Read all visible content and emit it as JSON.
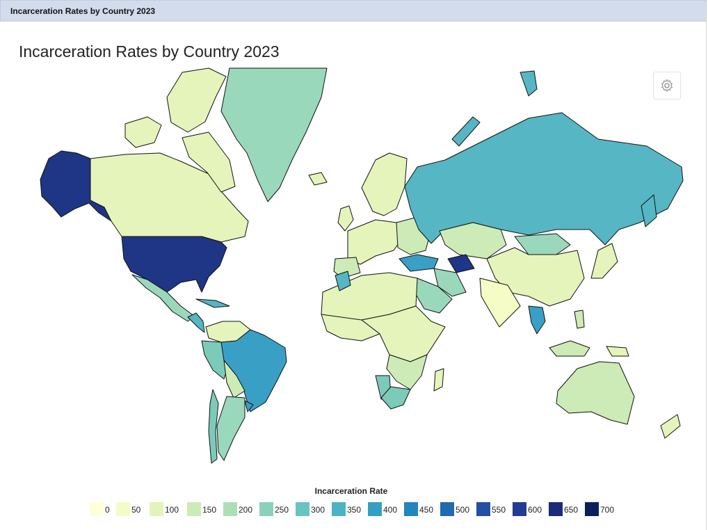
{
  "window": {
    "title": "Incarceration Rates by Country 2023"
  },
  "map": {
    "title": "Incarceration Rates by Country 2023",
    "legend_title": "Incarceration Rate",
    "settings_icon": "gear-icon",
    "legend": [
      {
        "label": "0",
        "color": "#ffffd9"
      },
      {
        "label": "50",
        "color": "#f3fbc6"
      },
      {
        "label": "100",
        "color": "#e2f4b9"
      },
      {
        "label": "150",
        "color": "#cdebb6"
      },
      {
        "label": "200",
        "color": "#addfb7"
      },
      {
        "label": "250",
        "color": "#8ad1ba"
      },
      {
        "label": "300",
        "color": "#69c3c0"
      },
      {
        "label": "350",
        "color": "#4bb4c3"
      },
      {
        "label": "400",
        "color": "#339fc3"
      },
      {
        "label": "450",
        "color": "#2185c0"
      },
      {
        "label": "500",
        "color": "#1f6ab1"
      },
      {
        "label": "550",
        "color": "#2150a4"
      },
      {
        "label": "600",
        "color": "#233b95"
      },
      {
        "label": "650",
        "color": "#1c2a7a"
      },
      {
        "label": "700",
        "color": "#0a1f5c"
      }
    ],
    "colors": {
      "very_low": "#f6fcc6",
      "low": "#e4f4bb",
      "mid_low": "#cdebb6",
      "mid": "#9ad8bb",
      "mid_high": "#7ccab9",
      "teal": "#56b6c3",
      "high": "#3a9fc5",
      "very_high": "#1f3585",
      "border": "#111111"
    }
  }
}
